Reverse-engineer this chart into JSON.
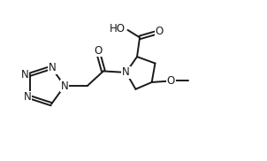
{
  "bg_color": "#ffffff",
  "line_color": "#1a1a1a",
  "line_width": 1.4,
  "font_size": 8.5,
  "xlim": [
    0,
    10
  ],
  "ylim": [
    0,
    6
  ]
}
